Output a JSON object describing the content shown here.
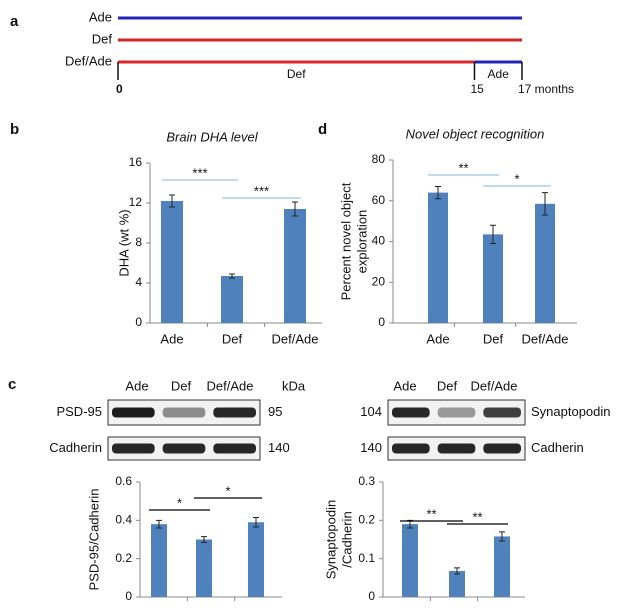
{
  "panel_labels": [
    "a",
    "b",
    "c",
    "d"
  ],
  "timeline": {
    "ticks": [
      {
        "value": 0,
        "label": "0"
      },
      {
        "value": 15,
        "label": "15"
      },
      {
        "value": 17,
        "label": "17 months"
      }
    ],
    "rows": [
      {
        "name": "Ade",
        "segments": [
          {
            "start": 0,
            "end": 17,
            "color": "#2323b4"
          }
        ]
      },
      {
        "name": "Def",
        "segments": [
          {
            "start": 0,
            "end": 17,
            "color": "#d9262b"
          }
        ]
      },
      {
        "name": "Def/Ade",
        "segments": [
          {
            "start": 0,
            "end": 15,
            "color": "#d9262b",
            "label": "Def"
          },
          {
            "start": 15,
            "end": 17,
            "color": "#2323b4",
            "label": "Ade"
          }
        ]
      }
    ]
  },
  "blots": [
    {
      "lanes": [
        "Ade",
        "Def",
        "Def/Ade"
      ],
      "unit": "kDa",
      "rows": [
        {
          "name": "PSD-95",
          "kda": 95
        },
        {
          "name": "Cadherin",
          "kda": 140
        }
      ]
    },
    {
      "lanes": [
        "Ade",
        "Def",
        "Def/Ade"
      ],
      "rows": [
        {
          "name": "Synaptopodin",
          "kda": 104
        },
        {
          "name": "Cadherin",
          "kda": 140
        }
      ]
    }
  ],
  "chart_data": [
    {
      "type": "bar",
      "title": "Brain DHA level",
      "y_label": "DHA (wt %)",
      "categories": [
        "Ade",
        "Def",
        "Def/Ade"
      ],
      "values": [
        12.2,
        4.7,
        11.4
      ],
      "errors": [
        0.6,
        0.2,
        0.7
      ],
      "color": "#4f81bd",
      "ylim": [
        0,
        16
      ],
      "yticks": [
        0,
        4,
        8,
        12,
        16
      ],
      "significance_color": "#9dc3e6",
      "annotations": [
        {
          "from": 0,
          "to": 1,
          "label": "***"
        },
        {
          "from": 1,
          "to": 2,
          "label": "***"
        }
      ]
    },
    {
      "type": "bar",
      "title": "Novel object recognition",
      "y_label": [
        "Percent novel object",
        "exploration"
      ],
      "categories": [
        "Ade",
        "Def",
        "Def/Ade"
      ],
      "values": [
        64,
        43.5,
        58.5
      ],
      "errors": [
        3,
        4.5,
        5.5
      ],
      "color": "#4f81bd",
      "ylim": [
        0,
        80
      ],
      "yticks": [
        0,
        20,
        40,
        60,
        80
      ],
      "significance_color": "#9dc3e6",
      "annotations": [
        {
          "from": 0,
          "to": 1,
          "label": "**"
        },
        {
          "from": 1,
          "to": 2,
          "label": "*"
        }
      ]
    },
    {
      "type": "bar",
      "y_label": "PSD-95/Cadherin",
      "values": [
        0.38,
        0.3,
        0.39
      ],
      "errors": [
        0.02,
        0.015,
        0.025
      ],
      "color": "#4f81bd",
      "ylim": [
        0,
        0.6
      ],
      "yticks": [
        0,
        0.2,
        0.4,
        0.6
      ],
      "significance_color": "#000000",
      "annotations": [
        {
          "from": 0,
          "to": 1,
          "label": "*"
        },
        {
          "from": 1,
          "to": 2,
          "label": "*"
        }
      ]
    },
    {
      "type": "bar",
      "y_label": [
        "Synaptopodin",
        "/Cadherin"
      ],
      "values": [
        0.19,
        0.068,
        0.158
      ],
      "errors": [
        0.01,
        0.008,
        0.012
      ],
      "color": "#4f81bd",
      "ylim": [
        0,
        0.3
      ],
      "yticks": [
        0,
        0.1,
        0.2,
        0.3
      ],
      "significance_color": "#000000",
      "annotations": [
        {
          "from": 0,
          "to": 1,
          "label": "**"
        },
        {
          "from": 1,
          "to": 2,
          "label": "**"
        }
      ]
    }
  ]
}
